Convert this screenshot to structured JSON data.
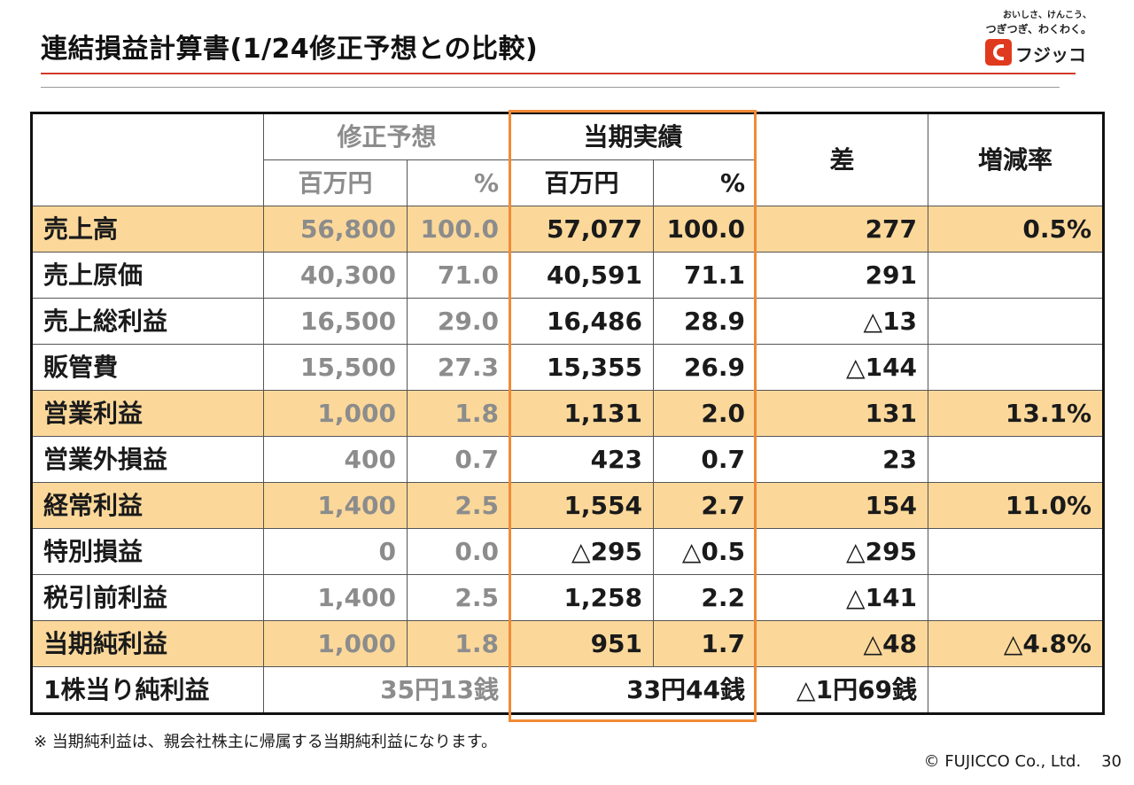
{
  "page": {
    "title": "連結損益計算書(1/24修正予想との比較)",
    "note": "※ 当期純利益は、親会社株主に帰属する当期純利益になります。",
    "copyright": "© FUJICCO Co., Ltd.",
    "page_number": "30"
  },
  "logo": {
    "tagline_1": "おいしさ、けんこう、",
    "tagline_2": "つぎつぎ、わくわく。",
    "wordmark": "フジッコ"
  },
  "colors": {
    "highlight": "#fbd89a",
    "frame": "#f08a36",
    "title_rule": "#d13a2a",
    "muted_text": "#8c8c8c"
  },
  "table": {
    "headers": {
      "forecast": "修正予想",
      "actual": "当期実績",
      "diff": "差",
      "rate": "増減率",
      "unit_million": "百万円",
      "unit_pct": "%"
    },
    "rows": [
      {
        "label": "売上高",
        "f_val": "56,800",
        "f_pct": "100.0",
        "a_val": "57,077",
        "a_pct": "100.0",
        "diff": "277",
        "rate": "0.5%"
      },
      {
        "label": "売上原価",
        "f_val": "40,300",
        "f_pct": "71.0",
        "a_val": "40,591",
        "a_pct": "71.1",
        "diff": "291",
        "rate": ""
      },
      {
        "label": "売上総利益",
        "f_val": "16,500",
        "f_pct": "29.0",
        "a_val": "16,486",
        "a_pct": "28.9",
        "diff": "△13",
        "rate": ""
      },
      {
        "label": "販管費",
        "f_val": "15,500",
        "f_pct": "27.3",
        "a_val": "15,355",
        "a_pct": "26.9",
        "diff": "△144",
        "rate": ""
      },
      {
        "label": "営業利益",
        "f_val": "1,000",
        "f_pct": "1.8",
        "a_val": "1,131",
        "a_pct": "2.0",
        "diff": "131",
        "rate": "13.1%"
      },
      {
        "label": "営業外損益",
        "f_val": "400",
        "f_pct": "0.7",
        "a_val": "423",
        "a_pct": "0.7",
        "diff": "23",
        "rate": ""
      },
      {
        "label": "経常利益",
        "f_val": "1,400",
        "f_pct": "2.5",
        "a_val": "1,554",
        "a_pct": "2.7",
        "diff": "154",
        "rate": "11.0%"
      },
      {
        "label": "特別損益",
        "f_val": "0",
        "f_pct": "0.0",
        "a_val": "△295",
        "a_pct": "△0.5",
        "diff": "△295",
        "rate": ""
      },
      {
        "label": "税引前利益",
        "f_val": "1,400",
        "f_pct": "2.5",
        "a_val": "1,258",
        "a_pct": "2.2",
        "diff": "△141",
        "rate": ""
      },
      {
        "label": "当期純利益",
        "f_val": "1,000",
        "f_pct": "1.8",
        "a_val": "951",
        "a_pct": "1.7",
        "diff": "△48",
        "rate": "△4.8%"
      }
    ],
    "eps": {
      "label": "1株当り純利益",
      "forecast": "35円13銭",
      "actual": "33円44銭",
      "diff": "△1円69銭",
      "rate": ""
    }
  }
}
